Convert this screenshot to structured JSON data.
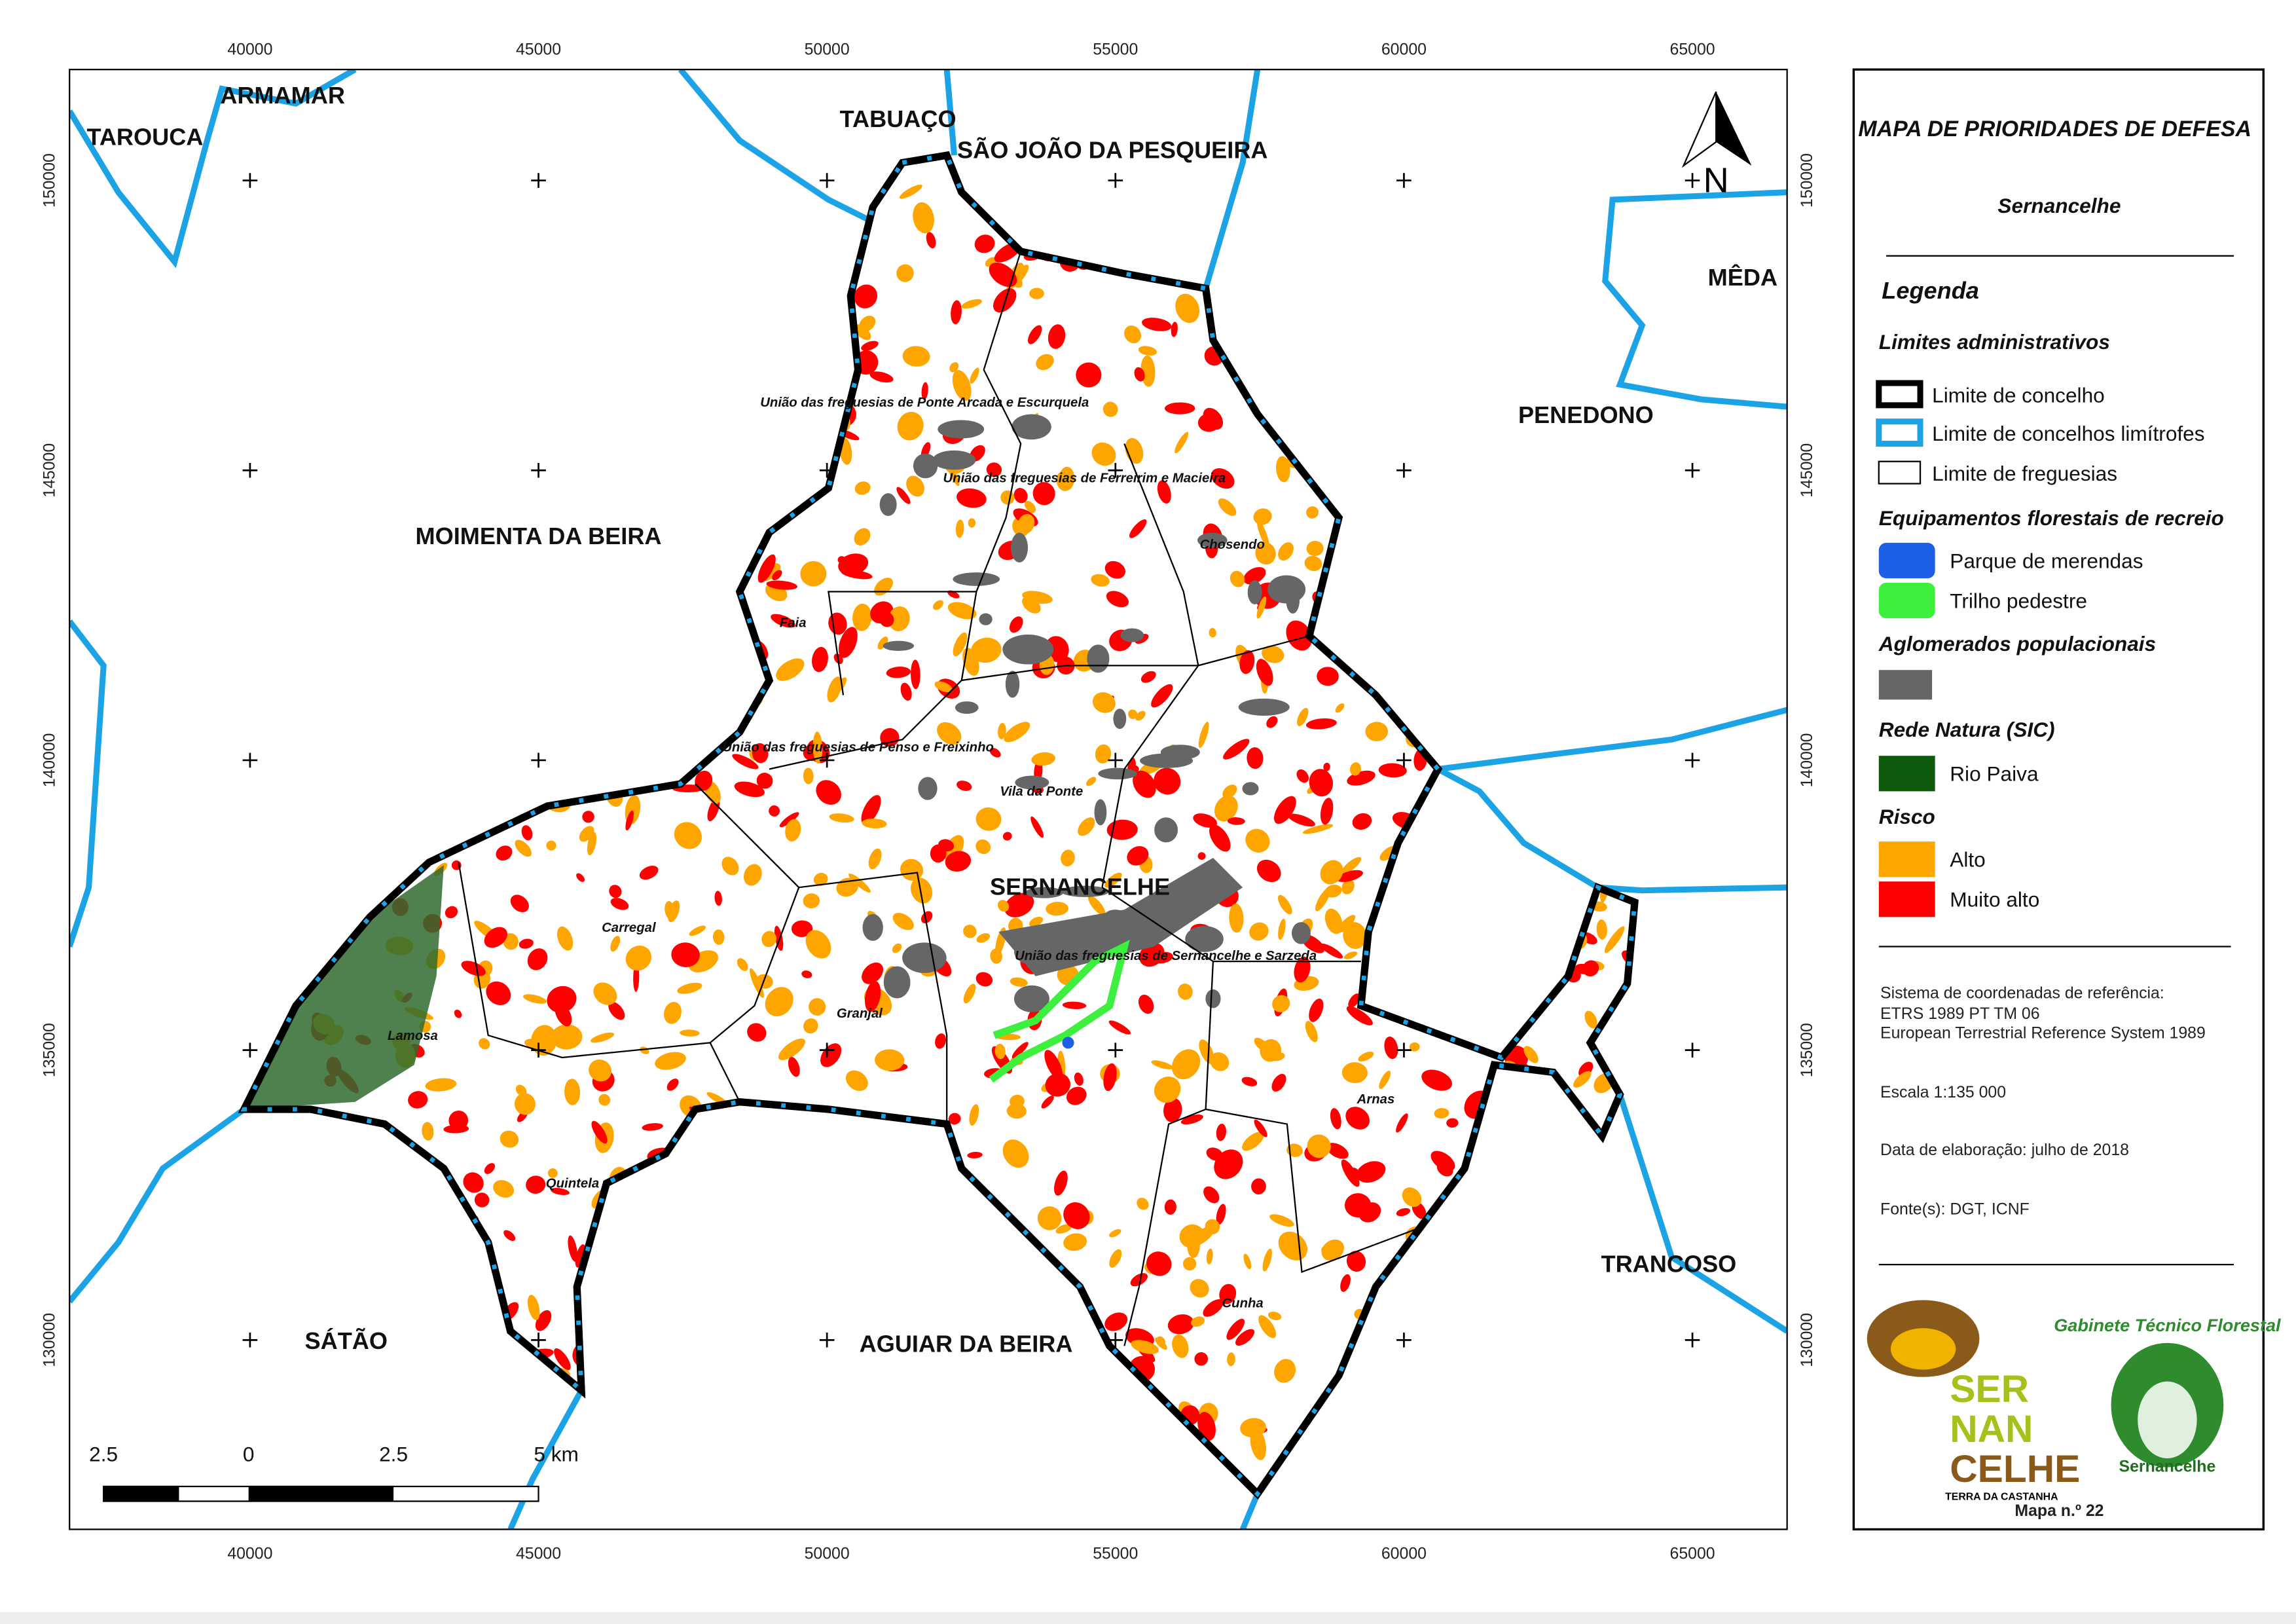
{
  "map": {
    "xticks": [
      40000,
      45000,
      50000,
      55000,
      60000,
      65000
    ],
    "yticks": [
      130000,
      135000,
      140000,
      145000,
      150000
    ],
    "neighbors": [
      "TAROUCA",
      "ARMAMAR",
      "TABUAÇO",
      "SÃO JOÃO DA PESQUEIRA",
      "MÊDA",
      "PENEDONO",
      "MOIMENTA DA BEIRA",
      "TRANCOSO",
      "SÁTÃO",
      "AGUIAR DA BEIRA"
    ],
    "municipality": "SERNANCELHE",
    "parishes": [
      "União das freguesias de Ponte Arcada e Escurquela",
      "União das freguesias de Ferreirim e Macieira",
      "Chosendo",
      "Faia",
      "União das freguesias de Penso e Freixinho",
      "Vila da Ponte",
      "Carregal",
      "União das freguesias de Sernancelhe e Sarzeda",
      "Granjal",
      "Lamosa",
      "Arnas",
      "Quintela",
      "Cunha"
    ],
    "north": "N",
    "scale_labels": [
      "2.5",
      "0",
      "2.5",
      "5 km"
    ]
  },
  "panel": {
    "title": "MAPA DE PRIORIDADES DE DEFESA",
    "subtitle": "Sernancelhe",
    "legend_title": "Legenda",
    "sections": [
      {
        "title": "Limites administrativos",
        "items": [
          "Limite de concelho",
          "Limite de concelhos limítrofes",
          "Limite de freguesias"
        ]
      },
      {
        "title": "Equipamentos florestais de recreio",
        "items": [
          "Parque de merendas",
          "Trilho pedestre"
        ]
      },
      {
        "title": "Aglomerados populacionais",
        "items": []
      },
      {
        "title": "Rede Natura (SIC)",
        "items": [
          "Rio Paiva"
        ]
      },
      {
        "title": "Risco",
        "items": [
          "Alto",
          "Muito alto"
        ]
      }
    ],
    "info": [
      "Sistema de coordenadas de referência:",
      "ETRS 1989 PT TM 06",
      "European Terrestrial Reference System 1989",
      "Escala 1:135 000",
      "Data de elaboração: julho de 2018",
      "Fonte(s): DGT, ICNF"
    ],
    "logos": [
      "SER",
      "NAN",
      "CELHE",
      "TERRA DA CASTANHA",
      "Gabinete Técnico Florestal",
      "Sernancelhe"
    ],
    "map_number": "Mapa n.º 22"
  }
}
